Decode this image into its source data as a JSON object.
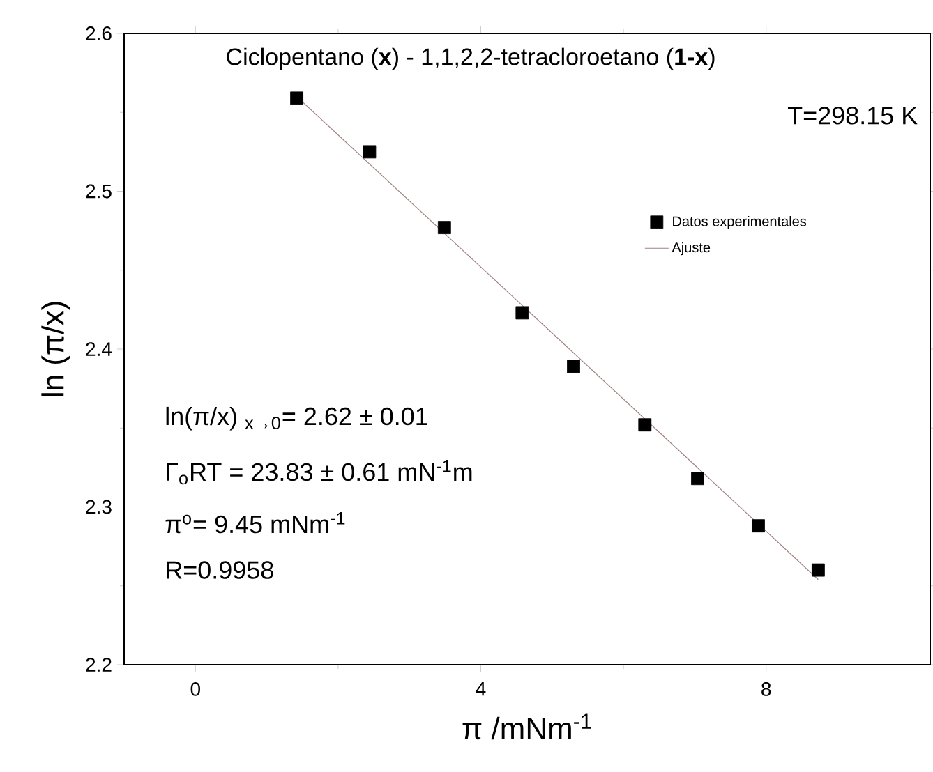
{
  "chart_data": {
    "type": "scatter",
    "title": "Ciclopentano (**x**) - 1,1,2,2-tetracloroetano (**1-x**)",
    "xlabel": "π /mNm$^{-1}$",
    "ylabel": "ln (π/x)",
    "xlim": [
      -1,
      10.3
    ],
    "ylim": [
      2.2,
      2.6
    ],
    "xticks": [
      0,
      4,
      8
    ],
    "yticks": [
      2.2,
      2.3,
      2.4,
      2.5,
      2.6
    ],
    "legend": "top right",
    "annotations": [
      "T=298.15 K",
      "ln(π/x) $_{x→0}$= 2.62 ± 0.01",
      "Γ$_{o}$RT = 23.83 ± 0.61 mN$^{-1}$m",
      "π$^{o}$= 9.45 mNm$^{-1}$",
      "R=0.9958"
    ],
    "series": [
      {
        "name": "Datos experimentales",
        "marker": "square",
        "color": "#000000",
        "x": [
          1.42,
          2.44,
          3.49,
          4.58,
          5.3,
          6.3,
          7.04,
          7.89,
          8.73
        ],
        "values": [
          2.559,
          2.525,
          2.477,
          2.423,
          2.389,
          2.352,
          2.318,
          2.288,
          2.26
        ]
      },
      {
        "name": "Ajuste",
        "type": "line",
        "color": "#a08080",
        "x": [
          1.42,
          8.73
        ],
        "values": [
          2.56,
          2.254
        ]
      }
    ]
  }
}
